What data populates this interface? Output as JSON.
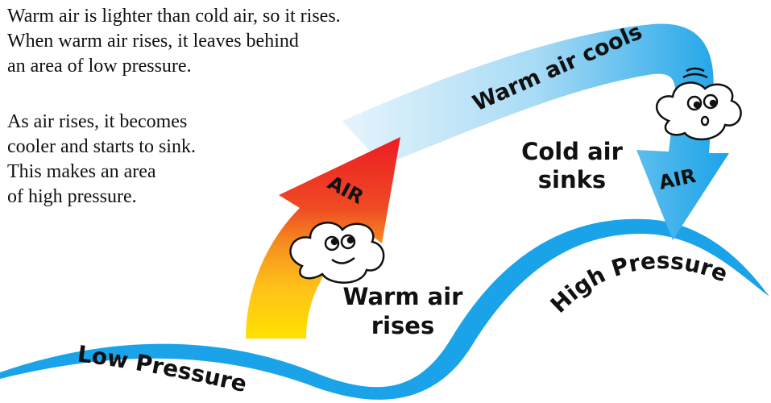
{
  "intro": {
    "paragraphs": [
      {
        "lines": [
          "Warm air is lighter than cold air, so it rises.",
          "When warm air rises, it leaves behind",
          "an area of low pressure."
        ]
      },
      {
        "lines": [
          "As air rises, it becomes",
          "cooler and starts to sink.",
          "This makes an area",
          "of high pressure."
        ]
      }
    ]
  },
  "labels": {
    "rising_arrow": "AIR",
    "sinking_arrow": "AIR",
    "cooling": "Warm air cools",
    "sinking": [
      "Cold air",
      "sinks"
    ],
    "rising": [
      "Warm air",
      "rises"
    ],
    "high_pressure": "High Pressure",
    "low_pressure": "Low Pressure"
  }
}
